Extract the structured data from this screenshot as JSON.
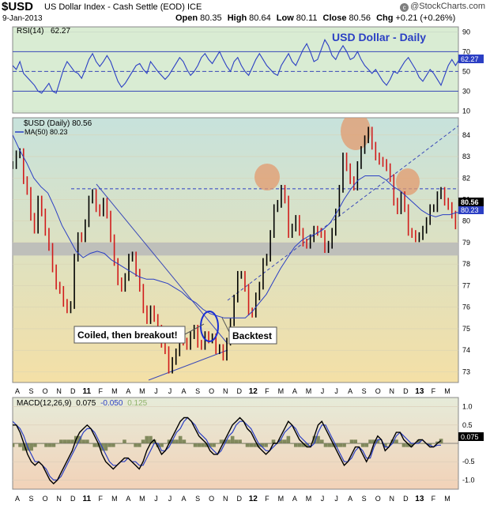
{
  "header": {
    "symbol": "$USD",
    "description": "US Dollar Index - Cash Settle (EOD) ICE",
    "date": "9-Jan-2013",
    "open_label": "Open",
    "open": "80.35",
    "high_label": "High",
    "high": "80.64",
    "low_label": "Low",
    "low": "80.11",
    "close_label": "Close",
    "close": "80.56",
    "chg_label": "Chg",
    "chg": "+0.21 (+0.26%)",
    "credit": "@StockCharts.com",
    "credit_icon": "copyright-icon"
  },
  "colors": {
    "rsi_bg": "#d9ecd3",
    "rsi_line": "#2b3fc4",
    "rsi_levels": "#3a49b8",
    "price_bg_top": "#c7e2dc",
    "price_bg_bottom": "#f4e0a6",
    "macd_bg_top": "#e6ebd9",
    "macd_bg_bottom": "#f2d2b8",
    "up": "#000000",
    "down": "#d11b1b",
    "ma": "#2b3fc4",
    "support_zone": "#b9b9b9",
    "circle_fill": "#e39a6e",
    "signal": "#2b3fc4",
    "histogram": "#6e7a4a"
  },
  "chart_data": [
    {
      "type": "line",
      "panel": "rsi",
      "label": "RSI(14)",
      "current": "62.27",
      "title": "USD Dollar - Daily",
      "levels": [
        70,
        50,
        30
      ],
      "ylim": [
        8,
        95
      ],
      "yticks": [
        90,
        70,
        50,
        30,
        10
      ],
      "x_start": 0,
      "x_step": 2,
      "series": [
        {
          "name": "RSI(14)",
          "values": [
            56,
            52,
            60,
            48,
            44,
            40,
            36,
            30,
            28,
            33,
            38,
            30,
            28,
            40,
            52,
            60,
            55,
            50,
            48,
            43,
            52,
            62,
            68,
            60,
            55,
            60,
            66,
            60,
            50,
            40,
            34,
            38,
            44,
            50,
            56,
            58,
            52,
            48,
            60,
            55,
            50,
            46,
            42,
            46,
            52,
            58,
            64,
            60,
            52,
            46,
            50,
            56,
            64,
            68,
            62,
            58,
            64,
            70,
            62,
            55,
            50,
            60,
            64,
            56,
            50,
            46,
            54,
            62,
            68,
            62,
            56,
            52,
            48,
            46,
            56,
            62,
            68,
            60,
            56,
            64,
            72,
            78,
            70,
            60,
            62,
            72,
            82,
            76,
            66,
            62,
            70,
            76,
            70,
            62,
            64,
            70,
            62,
            56,
            52,
            48,
            52,
            46,
            40,
            36,
            42,
            50,
            48,
            54,
            60,
            64,
            58,
            52,
            44,
            40,
            46,
            52,
            48,
            42,
            36,
            46,
            56,
            62,
            56,
            62,
            56,
            60,
            66,
            70,
            62,
            54,
            48,
            40,
            46,
            52,
            62
          ]
        }
      ]
    },
    {
      "type": "line",
      "panel": "price",
      "title": "$USD (Daily) 80.56",
      "ma_label": "MA(50) 80.23",
      "last_price": "80.56",
      "last_ma": "80.23",
      "ylim": [
        72.5,
        84.8
      ],
      "yticks": [
        84,
        83,
        82,
        81,
        80,
        79,
        78,
        77,
        76,
        75,
        74,
        73
      ],
      "x_start": 0,
      "x_step": 2,
      "series": [
        {
          "name": "$USD",
          "values": [
            82.6,
            83.1,
            83.2,
            81.9,
            81.4,
            80.2,
            79.6,
            81.0,
            80.4,
            79.5,
            78.8,
            77.8,
            77.0,
            76.8,
            76.2,
            75.9,
            76.1,
            78.3,
            79.3,
            79.2,
            79.9,
            81.0,
            81.3,
            80.6,
            80.4,
            80.9,
            80.3,
            79.2,
            78.1,
            77.2,
            76.9,
            77.4,
            78.3,
            78.4,
            77.6,
            76.9,
            75.9,
            75.4,
            75.9,
            75.5,
            75.0,
            74.3,
            74.0,
            73.1,
            73.5,
            73.9,
            74.6,
            74.4,
            74.2,
            74.7,
            75.0,
            74.3,
            74.2,
            74.7,
            74.5,
            74.6,
            74.0,
            74.1,
            73.7,
            74.4,
            75.3,
            76.4,
            77.5,
            77.5,
            76.9,
            75.8,
            75.7,
            76.5,
            77.0,
            78.1,
            78.3,
            79.4,
            80.6,
            80.8,
            81.5,
            81.0,
            79.4,
            79.7,
            80.1,
            79.5,
            79.0,
            78.9,
            79.2,
            79.6,
            79.5,
            79.4,
            78.7,
            78.9,
            79.5,
            80.4,
            81.5,
            83.0,
            82.5,
            81.9,
            81.6,
            82.6,
            83.3,
            83.8,
            84.2,
            83.5,
            83.0,
            82.8,
            82.7,
            82.5,
            82.0,
            80.9,
            80.5,
            81.2,
            80.6,
            79.5,
            79.4,
            79.2,
            79.3,
            79.6,
            80.0,
            80.6,
            80.6,
            81.2,
            81.4,
            80.9,
            80.7,
            80.3,
            79.8,
            79.6,
            79.3,
            79.4,
            80.4,
            80.0,
            80.4,
            80.1,
            80.3,
            80.6,
            80.4,
            80.5,
            80.6
          ]
        },
        {
          "name": "MA(50)",
          "values": [
            84.0,
            83.3,
            82.7,
            82.0,
            81.6,
            81.3,
            80.6,
            79.8,
            79.2,
            78.6,
            78.3,
            78.5,
            78.6,
            78.5,
            78.2,
            78.0,
            77.8,
            77.6,
            77.4,
            77.3,
            77.3,
            77.2,
            77.1,
            76.9,
            76.7,
            76.4,
            76.2,
            75.9,
            75.7,
            75.6,
            75.5,
            75.5,
            75.5,
            75.5,
            75.8,
            76.2,
            76.6,
            77.2,
            77.8,
            78.3,
            78.8,
            79.1,
            79.3,
            79.4,
            79.6,
            79.9,
            80.4,
            81.0,
            81.5,
            81.9,
            82.1,
            82.1,
            82.1,
            81.9,
            81.6,
            81.4,
            81.1,
            80.8,
            80.5,
            80.3,
            80.2,
            80.3,
            80.3,
            80.4,
            80.3,
            80.3,
            80.2,
            80.2,
            80.2,
            80.2
          ]
        }
      ],
      "annotations": [
        {
          "type": "support_band",
          "from": 78.4,
          "to": 79.0
        },
        {
          "type": "resistance_line",
          "value": 81.5
        },
        {
          "type": "label",
          "text": "Coiled, then breakout!"
        },
        {
          "type": "label",
          "text": "Backtest"
        },
        {
          "type": "circle",
          "note": "breakout"
        },
        {
          "type": "circle",
          "note": "top 1"
        },
        {
          "type": "circle",
          "note": "top 2"
        },
        {
          "type": "circle",
          "note": "top 3"
        }
      ]
    },
    {
      "type": "line",
      "panel": "macd",
      "label_prefix": "MACD(12,26,9)",
      "macd_value": "0.075",
      "signal_value": "-0.050",
      "hist_value": "0.125",
      "current": "0.075",
      "ylim": [
        -1.25,
        1.25
      ],
      "yticks": [
        1.0,
        0.5,
        -0.5,
        -1.0
      ],
      "x_start": 0,
      "x_step": 2,
      "series": [
        {
          "name": "MACD",
          "values": [
            0.5,
            0.5,
            0.3,
            0.0,
            -0.3,
            -0.5,
            -0.6,
            -0.5,
            -0.6,
            -0.8,
            -1.0,
            -1.1,
            -1.0,
            -0.8,
            -0.6,
            -0.4,
            -0.2,
            0.1,
            0.3,
            0.4,
            0.5,
            0.4,
            0.2,
            0.0,
            -0.3,
            -0.5,
            -0.6,
            -0.7,
            -0.6,
            -0.5,
            -0.4,
            -0.4,
            -0.5,
            -0.6,
            -0.7,
            -0.5,
            -0.2,
            0.0,
            0.1,
            -0.1,
            -0.3,
            -0.2,
            0.0,
            0.2,
            0.4,
            0.6,
            0.7,
            0.7,
            0.6,
            0.4,
            0.2,
            0.1,
            0.0,
            -0.2,
            -0.3,
            -0.3,
            -0.1,
            0.1,
            0.3,
            0.5,
            0.6,
            0.7,
            0.6,
            0.4,
            0.3,
            0.1,
            -0.1,
            -0.2,
            -0.3,
            -0.2,
            0.0,
            0.0,
            0.2,
            0.4,
            0.6,
            0.5,
            0.3,
            0.1,
            0.0,
            -0.1,
            -0.1,
            0.2,
            0.5,
            0.6,
            0.4,
            0.2,
            0.0,
            -0.2,
            -0.4,
            -0.6,
            -0.5,
            -0.3,
            -0.1,
            -0.1,
            -0.3,
            -0.5,
            -0.3,
            0.0,
            0.2,
            0.1,
            -0.2,
            -0.1,
            0.1,
            0.3,
            0.3,
            0.1,
            0.0,
            -0.1,
            0.0,
            0.1,
            0.1,
            0.0,
            -0.1,
            -0.1,
            0.0,
            0.075
          ]
        },
        {
          "name": "Signal",
          "values": [
            0.6,
            0.5,
            0.4,
            0.2,
            -0.1,
            -0.3,
            -0.5,
            -0.5,
            -0.6,
            -0.7,
            -0.9,
            -1.0,
            -1.0,
            -0.9,
            -0.7,
            -0.5,
            -0.3,
            -0.1,
            0.1,
            0.3,
            0.4,
            0.4,
            0.3,
            0.1,
            -0.1,
            -0.3,
            -0.5,
            -0.6,
            -0.6,
            -0.5,
            -0.5,
            -0.4,
            -0.5,
            -0.5,
            -0.6,
            -0.6,
            -0.4,
            -0.2,
            0.0,
            0.0,
            -0.2,
            -0.2,
            -0.1,
            0.1,
            0.3,
            0.4,
            0.6,
            0.7,
            0.6,
            0.5,
            0.3,
            0.2,
            0.1,
            -0.1,
            -0.2,
            -0.3,
            -0.2,
            0.0,
            0.2,
            0.3,
            0.5,
            0.6,
            0.6,
            0.5,
            0.4,
            0.2,
            0.0,
            -0.1,
            -0.2,
            -0.2,
            -0.1,
            0.0,
            0.1,
            0.3,
            0.4,
            0.5,
            0.4,
            0.2,
            0.1,
            0.0,
            -0.1,
            0.0,
            0.3,
            0.5,
            0.5,
            0.3,
            0.1,
            -0.1,
            -0.3,
            -0.5,
            -0.5,
            -0.4,
            -0.2,
            -0.1,
            -0.2,
            -0.4,
            -0.4,
            -0.1,
            0.1,
            0.1,
            -0.1,
            -0.1,
            0.0,
            0.2,
            0.3,
            0.2,
            0.1,
            0.0,
            0.0,
            0.0,
            0.1,
            0.0,
            -0.05,
            -0.1,
            -0.05,
            -0.05
          ]
        }
      ]
    }
  ],
  "x_axis": {
    "labels": [
      "A",
      "S",
      "O",
      "N",
      "D",
      "11",
      "F",
      "M",
      "A",
      "M",
      "J",
      "J",
      "A",
      "S",
      "O",
      "N",
      "D",
      "12",
      "F",
      "M",
      "A",
      "M",
      "J",
      "J",
      "A",
      "S",
      "O",
      "N",
      "D",
      "13",
      "F",
      "M"
    ],
    "bold_labels": [
      "11",
      "12",
      "13"
    ]
  }
}
